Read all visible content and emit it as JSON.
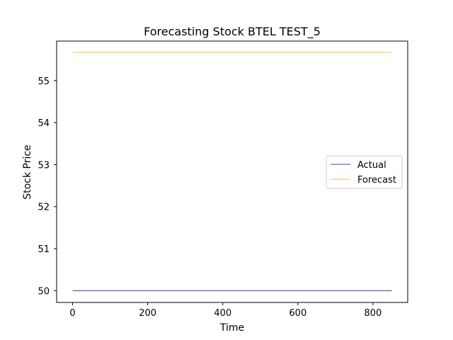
{
  "chart_data": {
    "type": "line",
    "title": "Forecasting Stock BTEL TEST_5",
    "xlabel": "Time",
    "ylabel": "Stock Price",
    "xlim": [
      -42.5,
      892.5
    ],
    "ylim": [
      49.72,
      55.94
    ],
    "xticks": [
      0,
      200,
      400,
      600,
      800
    ],
    "yticks": [
      50,
      51,
      52,
      53,
      54,
      55
    ],
    "grid": false,
    "legend_position": "center-right",
    "series": [
      {
        "name": "Actual",
        "color": "#0000cc",
        "x": [
          0,
          850
        ],
        "y": [
          50.0,
          50.0
        ]
      },
      {
        "name": "Forecast",
        "color": "#ffa500",
        "x": [
          0,
          850
        ],
        "y": [
          55.67,
          55.67
        ]
      }
    ]
  }
}
